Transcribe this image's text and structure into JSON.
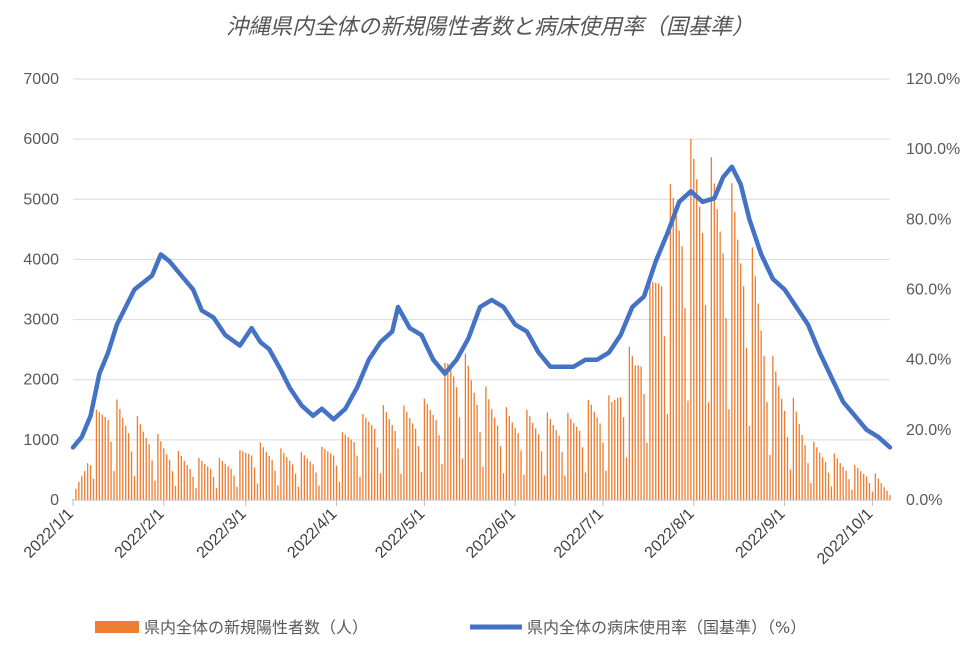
{
  "chart_data": {
    "type": "bar+line",
    "title": "沖縄県内全体の新規陽性者数と病床使用率（国基準）",
    "x_range": [
      "2022/1/1",
      "2022/10/7"
    ],
    "x_tick_labels": [
      "2022/1/1",
      "2022/2/1",
      "2022/3/1",
      "2022/4/1",
      "2022/5/1",
      "2022/6/1",
      "2022/7/1",
      "2022/8/1",
      "2022/9/1",
      "2022/10/1"
    ],
    "y_left": {
      "min": 0,
      "max": 7000,
      "tick_labels": [
        "0",
        "1000",
        "2000",
        "3000",
        "4000",
        "5000",
        "6000",
        "7000"
      ]
    },
    "y_right": {
      "min": 0,
      "max": 120,
      "tick_labels": [
        "0.0%",
        "20.0%",
        "40.0%",
        "60.0%",
        "80.0%",
        "100.0%",
        "120.0%"
      ]
    },
    "grid": "horizontal",
    "legend_position": "bottom",
    "series": [
      {
        "name": "県内全体の新規陽性者数（人）",
        "type": "bar",
        "axis": "left",
        "color": "#ED7D31",
        "weekly_peaks": [
          [
            "2022/1/1",
            50
          ],
          [
            "2022/1/5",
            600
          ],
          [
            "2022/1/9",
            1500
          ],
          [
            "2022/1/13",
            1800
          ],
          [
            "2022/1/20",
            1500
          ],
          [
            "2022/1/27",
            1250
          ],
          [
            "2022/2/3",
            900
          ],
          [
            "2022/2/10",
            700
          ],
          [
            "2022/2/17",
            700
          ],
          [
            "2022/2/24",
            700
          ],
          [
            "2022/3/3",
            1000
          ],
          [
            "2022/3/10",
            900
          ],
          [
            "2022/3/17",
            800
          ],
          [
            "2022/3/24",
            800
          ],
          [
            "2022/3/31",
            1000
          ],
          [
            "2022/4/7",
            1300
          ],
          [
            "2022/4/14",
            1600
          ],
          [
            "2022/4/21",
            1550
          ],
          [
            "2022/4/28",
            1600
          ],
          [
            "2022/5/5",
            1800
          ],
          [
            "2022/5/10",
            2600
          ],
          [
            "2022/5/16",
            2400
          ],
          [
            "2022/5/23",
            1800
          ],
          [
            "2022/5/30",
            1500
          ],
          [
            "2022/6/6",
            1500
          ],
          [
            "2022/6/13",
            1450
          ],
          [
            "2022/6/20",
            1450
          ],
          [
            "2022/6/27",
            1700
          ],
          [
            "2022/7/4",
            1750
          ],
          [
            "2022/7/8",
            2500
          ],
          [
            "2022/7/12",
            2600
          ],
          [
            "2022/7/17",
            3600
          ],
          [
            "2022/7/21",
            4800
          ],
          [
            "2022/7/25",
            5400
          ],
          [
            "2022/7/29",
            5800
          ],
          [
            "2022/8/2",
            6200
          ],
          [
            "2022/8/7",
            5700
          ],
          [
            "2022/8/12",
            5500
          ],
          [
            "2022/8/18",
            4800
          ],
          [
            "2022/8/23",
            3800
          ],
          [
            "2022/8/28",
            2400
          ],
          [
            "2022/9/4",
            1700
          ],
          [
            "2022/9/10",
            1000
          ],
          [
            "2022/9/17",
            800
          ],
          [
            "2022/9/24",
            600
          ],
          [
            "2022/10/1",
            500
          ],
          [
            "2022/10/7",
            150
          ]
        ]
      },
      {
        "name": "県内全体の病床使用率（国基準）（%）",
        "type": "line",
        "axis": "right",
        "color": "#4472C4",
        "points": [
          [
            "2022/1/1",
            15
          ],
          [
            "2022/1/4",
            18
          ],
          [
            "2022/1/7",
            24
          ],
          [
            "2022/1/10",
            36
          ],
          [
            "2022/1/13",
            42
          ],
          [
            "2022/1/16",
            50
          ],
          [
            "2022/1/19",
            55
          ],
          [
            "2022/1/22",
            60
          ],
          [
            "2022/1/25",
            62
          ],
          [
            "2022/1/28",
            64
          ],
          [
            "2022/1/31",
            70
          ],
          [
            "2022/2/3",
            68
          ],
          [
            "2022/2/7",
            64
          ],
          [
            "2022/2/11",
            60
          ],
          [
            "2022/2/14",
            54
          ],
          [
            "2022/2/18",
            52
          ],
          [
            "2022/2/22",
            47
          ],
          [
            "2022/2/27",
            44
          ],
          [
            "2022/3/3",
            49
          ],
          [
            "2022/3/6",
            45
          ],
          [
            "2022/3/9",
            43
          ],
          [
            "2022/3/13",
            37
          ],
          [
            "2022/3/16",
            32
          ],
          [
            "2022/3/20",
            27
          ],
          [
            "2022/3/24",
            24
          ],
          [
            "2022/3/27",
            26
          ],
          [
            "2022/3/31",
            23
          ],
          [
            "2022/4/4",
            26
          ],
          [
            "2022/4/8",
            32
          ],
          [
            "2022/4/12",
            40
          ],
          [
            "2022/4/16",
            45
          ],
          [
            "2022/4/20",
            48
          ],
          [
            "2022/4/22",
            55
          ],
          [
            "2022/4/26",
            49
          ],
          [
            "2022/4/30",
            47
          ],
          [
            "2022/5/4",
            40
          ],
          [
            "2022/5/8",
            36
          ],
          [
            "2022/5/12",
            40
          ],
          [
            "2022/5/16",
            46
          ],
          [
            "2022/5/20",
            55
          ],
          [
            "2022/5/24",
            57
          ],
          [
            "2022/5/28",
            55
          ],
          [
            "2022/6/1",
            50
          ],
          [
            "2022/6/5",
            48
          ],
          [
            "2022/6/9",
            42
          ],
          [
            "2022/6/13",
            38
          ],
          [
            "2022/6/17",
            38
          ],
          [
            "2022/6/21",
            38
          ],
          [
            "2022/6/25",
            40
          ],
          [
            "2022/6/29",
            40
          ],
          [
            "2022/7/3",
            42
          ],
          [
            "2022/7/7",
            47
          ],
          [
            "2022/7/11",
            55
          ],
          [
            "2022/7/15",
            58
          ],
          [
            "2022/7/19",
            68
          ],
          [
            "2022/7/23",
            76
          ],
          [
            "2022/7/27",
            85
          ],
          [
            "2022/7/31",
            88
          ],
          [
            "2022/8/4",
            85
          ],
          [
            "2022/8/8",
            86
          ],
          [
            "2022/8/11",
            92
          ],
          [
            "2022/8/14",
            95
          ],
          [
            "2022/8/17",
            90
          ],
          [
            "2022/8/20",
            80
          ],
          [
            "2022/8/24",
            70
          ],
          [
            "2022/8/28",
            63
          ],
          [
            "2022/9/1",
            60
          ],
          [
            "2022/9/5",
            55
          ],
          [
            "2022/9/9",
            50
          ],
          [
            "2022/9/13",
            42
          ],
          [
            "2022/9/17",
            35
          ],
          [
            "2022/9/21",
            28
          ],
          [
            "2022/9/25",
            24
          ],
          [
            "2022/9/29",
            20
          ],
          [
            "2022/10/3",
            18
          ],
          [
            "2022/10/7",
            15
          ]
        ]
      }
    ]
  }
}
